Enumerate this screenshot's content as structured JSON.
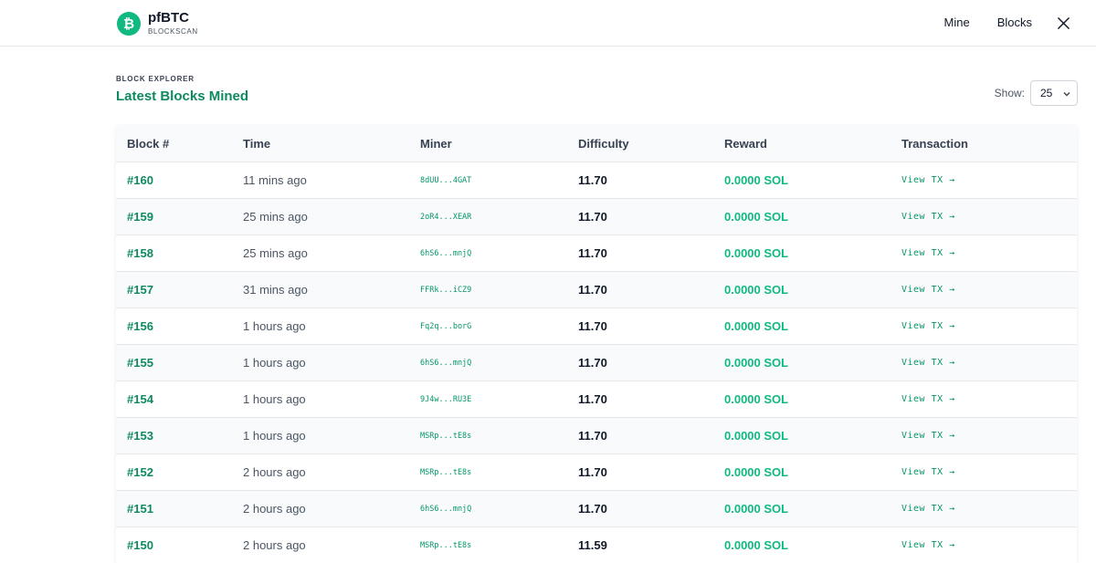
{
  "brand": {
    "logo_glyph": "₿",
    "name": "pfBTC",
    "subtitle": "BLOCKSCAN"
  },
  "nav": {
    "items": [
      "Mine",
      "Blocks"
    ],
    "social_icon": "x-icon"
  },
  "page": {
    "eyebrow": "BLOCK EXPLORER",
    "title": "Latest Blocks Mined"
  },
  "show": {
    "label": "Show:",
    "value": "25"
  },
  "table": {
    "headers": [
      "Block #",
      "Time",
      "Miner",
      "Difficulty",
      "Reward",
      "Transaction"
    ],
    "rows": [
      {
        "block": "#160",
        "time": "11 mins ago",
        "miner": "8dUU...4GAT",
        "difficulty": "11.70",
        "reward": "0.0000 SOL",
        "tx": "View TX →"
      },
      {
        "block": "#159",
        "time": "25 mins ago",
        "miner": "2oR4...XEAR",
        "difficulty": "11.70",
        "reward": "0.0000 SOL",
        "tx": "View TX →"
      },
      {
        "block": "#158",
        "time": "25 mins ago",
        "miner": "6hS6...mnjQ",
        "difficulty": "11.70",
        "reward": "0.0000 SOL",
        "tx": "View TX →"
      },
      {
        "block": "#157",
        "time": "31 mins ago",
        "miner": "FFRk...iCZ9",
        "difficulty": "11.70",
        "reward": "0.0000 SOL",
        "tx": "View TX →"
      },
      {
        "block": "#156",
        "time": "1 hours ago",
        "miner": "Fq2q...borG",
        "difficulty": "11.70",
        "reward": "0.0000 SOL",
        "tx": "View TX →"
      },
      {
        "block": "#155",
        "time": "1 hours ago",
        "miner": "6hS6...mnjQ",
        "difficulty": "11.70",
        "reward": "0.0000 SOL",
        "tx": "View TX →"
      },
      {
        "block": "#154",
        "time": "1 hours ago",
        "miner": "9J4w...RU3E",
        "difficulty": "11.70",
        "reward": "0.0000 SOL",
        "tx": "View TX →"
      },
      {
        "block": "#153",
        "time": "1 hours ago",
        "miner": "MSRp...tE8s",
        "difficulty": "11.70",
        "reward": "0.0000 SOL",
        "tx": "View TX →"
      },
      {
        "block": "#152",
        "time": "2 hours ago",
        "miner": "MSRp...tE8s",
        "difficulty": "11.70",
        "reward": "0.0000 SOL",
        "tx": "View TX →"
      },
      {
        "block": "#151",
        "time": "2 hours ago",
        "miner": "6hS6...mnjQ",
        "difficulty": "11.70",
        "reward": "0.0000 SOL",
        "tx": "View TX →"
      },
      {
        "block": "#150",
        "time": "2 hours ago",
        "miner": "MSRp...tE8s",
        "difficulty": "11.59",
        "reward": "0.0000 SOL",
        "tx": "View TX →"
      }
    ]
  },
  "colors": {
    "brand": "#10b981",
    "title": "#0f8a5f"
  }
}
